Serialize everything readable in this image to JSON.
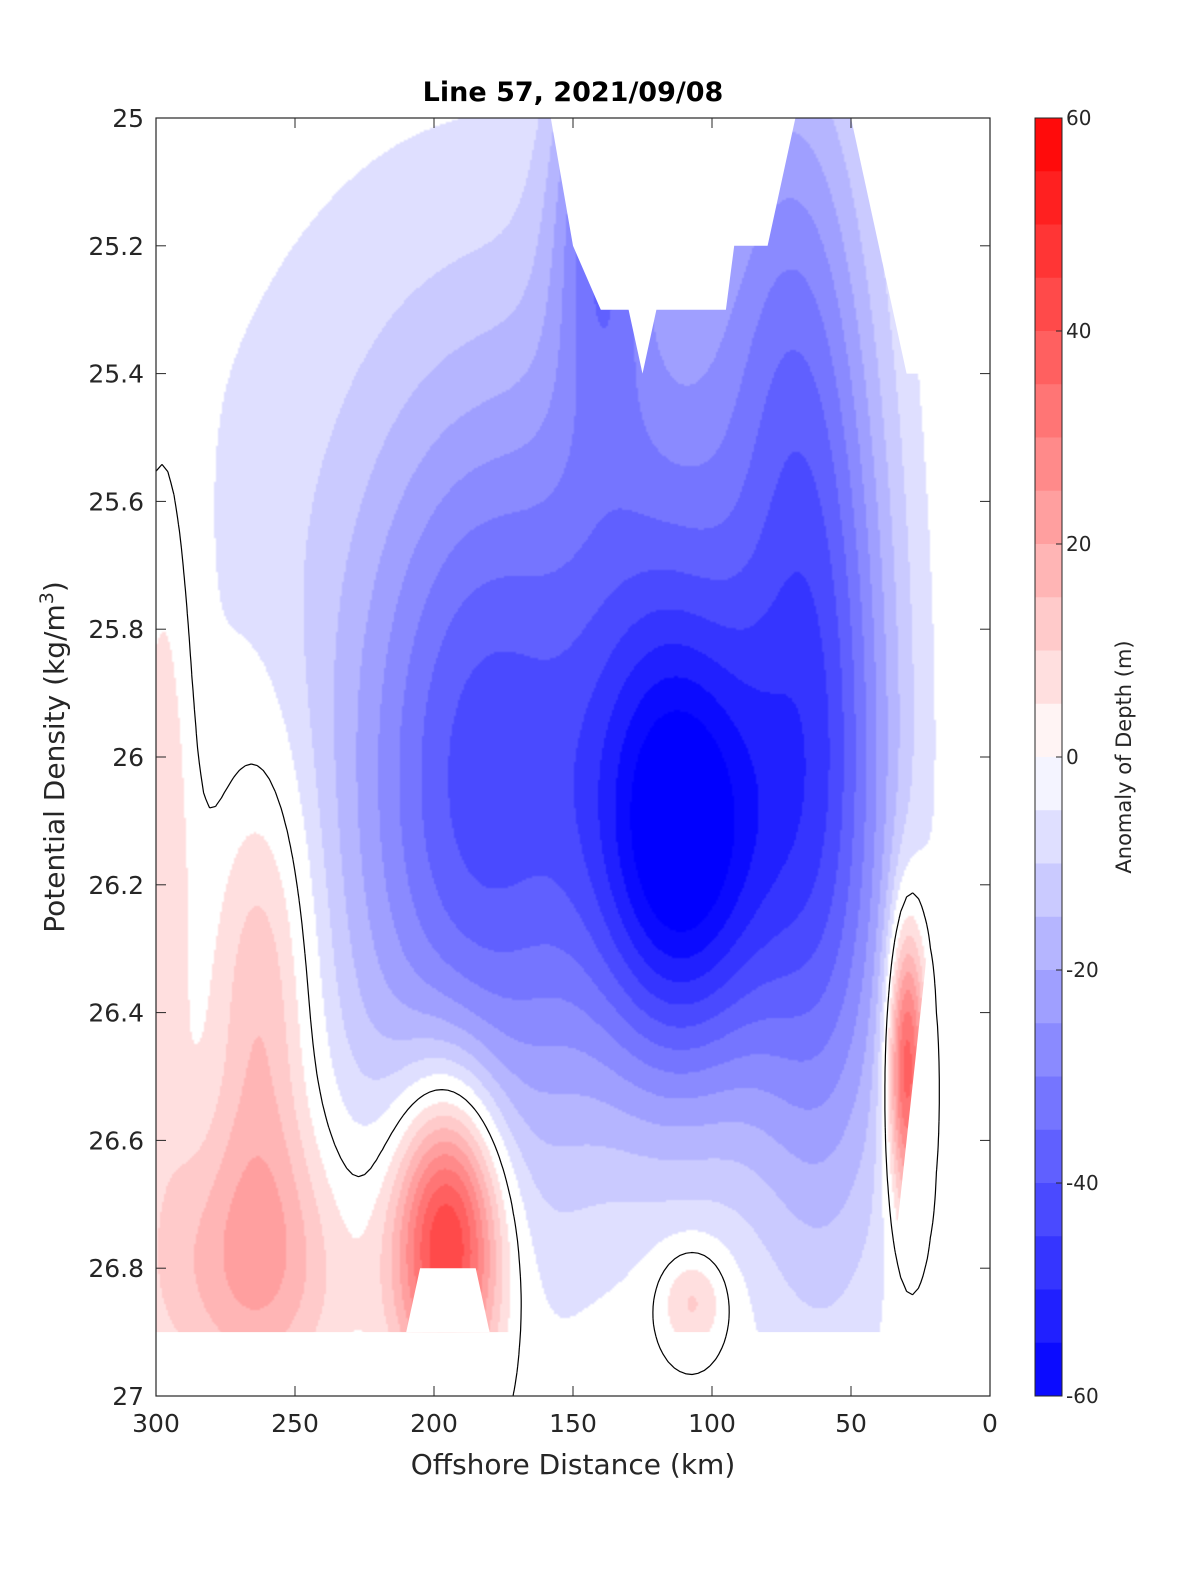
{
  "chart_data": {
    "type": "heatmap",
    "title": "Line 57, 2021/09/08",
    "xlabel": "Offshore Distance (km)",
    "ylabel_main": "Potential Density (kg/m",
    "ylabel_sup": "3",
    "ylabel_close": ")",
    "xlim": [
      300,
      0
    ],
    "ylim": [
      25,
      27
    ],
    "x_ticks": [
      300,
      250,
      200,
      150,
      100,
      50,
      0
    ],
    "x_tick_labels": [
      "300",
      "250",
      "200",
      "150",
      "100",
      "50",
      "0"
    ],
    "y_ticks": [
      25,
      25.2,
      25.4,
      25.6,
      25.8,
      26,
      26.2,
      26.4,
      26.6,
      26.8,
      27
    ],
    "y_tick_labels": [
      "25",
      "25.2",
      "25.4",
      "25.6",
      "25.8",
      "26",
      "26.2",
      "26.4",
      "26.6",
      "26.8",
      "27"
    ],
    "colorbar": {
      "label": "Anomaly of Depth (m)",
      "range": [
        -60,
        60
      ],
      "step": 5,
      "ticks": [
        -60,
        -40,
        -20,
        0,
        20,
        40,
        60
      ],
      "tick_labels": [
        "-60",
        "-40",
        "-20",
        "0",
        "20",
        "40",
        "60"
      ],
      "neg_color": "#0000ff",
      "pos_color": "#ff0000",
      "mid_color": "#ffffff"
    },
    "grid": false,
    "zero_contour": true,
    "features": [
      {
        "x": 110,
        "y": 26.15,
        "value": -55,
        "sx": 24,
        "sy": 0.27
      },
      {
        "x": 60,
        "y": 26.05,
        "value": -36,
        "sx": 20,
        "sy": 0.5
      },
      {
        "x": 182,
        "y": 26.05,
        "value": -35,
        "sx": 32,
        "sy": 0.42
      },
      {
        "x": 140,
        "y": 25.1,
        "value": -24,
        "sx": 12,
        "sy": 0.25
      },
      {
        "x": 120,
        "y": 25.6,
        "value": -20,
        "sx": 30,
        "sy": 0.4
      },
      {
        "x": 72,
        "y": 25.3,
        "value": -18,
        "sx": 20,
        "sy": 0.4
      },
      {
        "x": 225,
        "y": 25.9,
        "value": -8,
        "sx": 70,
        "sy": 0.7
      },
      {
        "x": 195,
        "y": 26.75,
        "value": 55,
        "sx": 14,
        "sy": 0.17
      },
      {
        "x": 265,
        "y": 26.8,
        "value": 20,
        "sx": 28,
        "sy": 0.16
      },
      {
        "x": 262,
        "y": 26.38,
        "value": 20,
        "sx": 14,
        "sy": 0.28
      },
      {
        "x": 297,
        "y": 26.1,
        "value": 13,
        "sx": 8,
        "sy": 0.38
      },
      {
        "x": 30,
        "y": 26.48,
        "value": 45,
        "sx": 5,
        "sy": 0.16
      },
      {
        "x": 107,
        "y": 26.85,
        "value": 14,
        "sx": 9,
        "sy": 0.06
      }
    ],
    "missing_regions": [
      {
        "name": "top-gap",
        "points": [
          [
            158,
            25
          ],
          [
            150,
            25.2
          ],
          [
            140,
            25.3
          ],
          [
            130,
            25.3
          ],
          [
            125,
            25.4
          ],
          [
            120,
            25.3
          ],
          [
            95,
            25.3
          ],
          [
            92,
            25.2
          ],
          [
            80,
            25.2
          ],
          [
            70,
            25
          ],
          [
            158,
            25
          ]
        ]
      },
      {
        "name": "top-right-gap",
        "points": [
          [
            50,
            25
          ],
          [
            30,
            25.4
          ],
          [
            10,
            25.4
          ],
          [
            0,
            25.4
          ],
          [
            0,
            25
          ],
          [
            50,
            25
          ]
        ]
      },
      {
        "name": "right-edge-gap",
        "points": [
          [
            15,
            26.1
          ],
          [
            0,
            26.1
          ],
          [
            0,
            27
          ],
          [
            300,
            27
          ],
          [
            300,
            26.9
          ],
          [
            35,
            26.9
          ],
          [
            35,
            26.8
          ],
          [
            20,
            26.2
          ],
          [
            15,
            26.1
          ]
        ]
      },
      {
        "name": "bottom-notch",
        "points": [
          [
            210,
            26.9
          ],
          [
            205,
            26.8
          ],
          [
            185,
            26.8
          ],
          [
            180,
            26.9
          ],
          [
            210,
            26.9
          ]
        ]
      }
    ]
  }
}
